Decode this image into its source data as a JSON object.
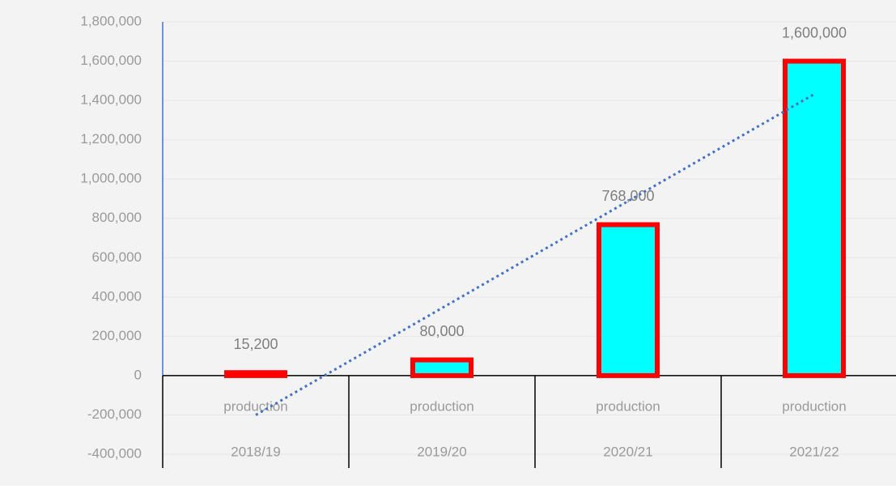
{
  "chart_data": {
    "type": "bar",
    "categories": [
      "production",
      "production",
      "production",
      "production"
    ],
    "category_groups": [
      "2018/19",
      "2019/20",
      "2020/21",
      "2021/22"
    ],
    "values": [
      15200,
      80000,
      768000,
      1600000
    ],
    "value_labels": [
      "15,200",
      "80,000",
      "768,000",
      "1,600,000"
    ],
    "color": "#00ffff",
    "edge_color": "#ff0000",
    "trendline": {
      "type": "linear",
      "color": "#4472c4",
      "style": "dotted"
    },
    "ylim": [
      -400000,
      1800000
    ],
    "yticks": [
      {
        "value": -400000,
        "label": "-400,000"
      },
      {
        "value": -200000,
        "label": "-200,000"
      },
      0,
      {
        "value": 200000,
        "label": "200,000"
      },
      {
        "value": 400000,
        "label": "400,000"
      },
      {
        "value": 600000,
        "label": "600,000"
      },
      {
        "value": 800000,
        "label": "800,000"
      },
      {
        "value": 1000000,
        "label": "1,000,000"
      },
      {
        "value": 1200000,
        "label": "1,200,000"
      },
      {
        "value": 1400000,
        "label": "1,400,000"
      },
      {
        "value": 1600000,
        "label": "1,600,000"
      },
      {
        "value": 1800000,
        "label": "1,800,000"
      }
    ],
    "grid": true
  }
}
